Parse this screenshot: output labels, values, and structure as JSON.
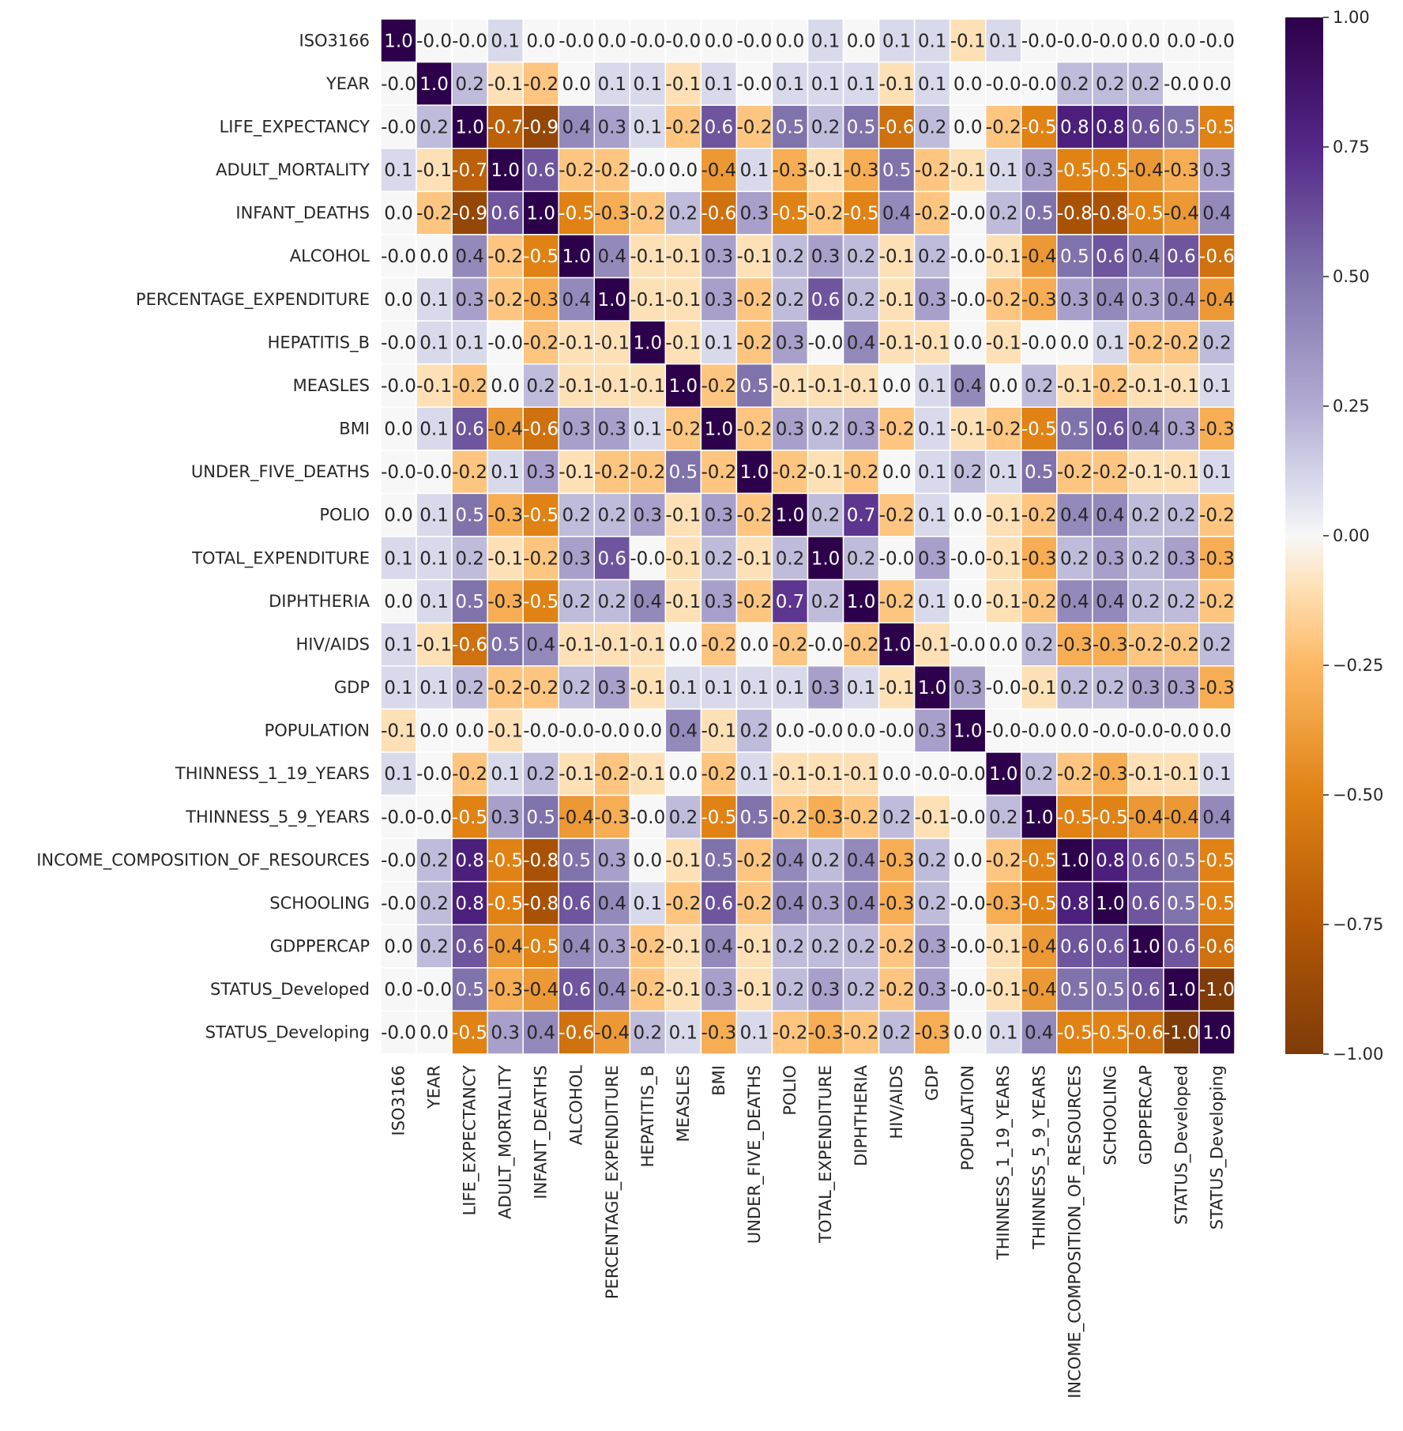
{
  "chart_data": {
    "type": "heatmap",
    "title": "",
    "xlabel": "",
    "ylabel": "",
    "grid": false,
    "legend": "colorbar-right",
    "labels": [
      "ISO3166",
      "YEAR",
      "LIFE_EXPECTANCY",
      "ADULT_MORTALITY",
      "INFANT_DEATHS",
      "ALCOHOL",
      "PERCENTAGE_EXPENDITURE",
      "HEPATITIS_B",
      "MEASLES",
      "BMI",
      "UNDER_FIVE_DEATHS",
      "POLIO",
      "TOTAL_EXPENDITURE",
      "DIPHTHERIA",
      "HIV/AIDS",
      "GDP",
      "POPULATION",
      "THINNESS_1_19_YEARS",
      "THINNESS_5_9_YEARS",
      "INCOME_COMPOSITION_OF_RESOURCES",
      "SCHOOLING",
      "GDPPERCAP",
      "STATUS_Developed",
      "STATUS_Developing"
    ],
    "cell_labels": [
      [
        "1.0",
        "-0.0",
        "-0.0",
        "0.1",
        "0.0",
        "-0.0",
        "0.0",
        "-0.0",
        "-0.0",
        "0.0",
        "-0.0",
        "0.0",
        "0.1",
        "0.0",
        "0.1",
        "0.1",
        "-0.1",
        "0.1",
        "-0.0",
        "-0.0",
        "-0.0",
        "0.0",
        "0.0",
        "-0.0"
      ],
      [
        "-0.0",
        "1.0",
        "0.2",
        "-0.1",
        "-0.2",
        "0.0",
        "0.1",
        "0.1",
        "-0.1",
        "0.1",
        "-0.0",
        "0.1",
        "0.1",
        "0.1",
        "-0.1",
        "0.1",
        "0.0",
        "-0.0",
        "-0.0",
        "0.2",
        "0.2",
        "0.2",
        "-0.0",
        "0.0"
      ],
      [
        "-0.0",
        "0.2",
        "1.0",
        "-0.7",
        "-0.9",
        "0.4",
        "0.3",
        "0.1",
        "-0.2",
        "0.6",
        "-0.2",
        "0.5",
        "0.2",
        "0.5",
        "-0.6",
        "0.2",
        "0.0",
        "-0.2",
        "-0.5",
        "0.8",
        "0.8",
        "0.6",
        "0.5",
        "-0.5"
      ],
      [
        "0.1",
        "-0.1",
        "-0.7",
        "1.0",
        "0.6",
        "-0.2",
        "-0.2",
        "-0.0",
        "0.0",
        "-0.4",
        "0.1",
        "-0.3",
        "-0.1",
        "-0.3",
        "0.5",
        "-0.2",
        "-0.1",
        "0.1",
        "0.3",
        "-0.5",
        "-0.5",
        "-0.4",
        "-0.3",
        "0.3"
      ],
      [
        "0.0",
        "-0.2",
        "-0.9",
        "0.6",
        "1.0",
        "-0.5",
        "-0.3",
        "-0.2",
        "0.2",
        "-0.6",
        "0.3",
        "-0.5",
        "-0.2",
        "-0.5",
        "0.4",
        "-0.2",
        "-0.0",
        "0.2",
        "0.5",
        "-0.8",
        "-0.8",
        "-0.5",
        "-0.4",
        "0.4"
      ],
      [
        "-0.0",
        "0.0",
        "0.4",
        "-0.2",
        "-0.5",
        "1.0",
        "0.4",
        "-0.1",
        "-0.1",
        "0.3",
        "-0.1",
        "0.2",
        "0.3",
        "0.2",
        "-0.1",
        "0.2",
        "-0.0",
        "-0.1",
        "-0.4",
        "0.5",
        "0.6",
        "0.4",
        "0.6",
        "-0.6"
      ],
      [
        "0.0",
        "0.1",
        "0.3",
        "-0.2",
        "-0.3",
        "0.4",
        "1.0",
        "-0.1",
        "-0.1",
        "0.3",
        "-0.2",
        "0.2",
        "0.6",
        "0.2",
        "-0.1",
        "0.3",
        "-0.0",
        "-0.2",
        "-0.3",
        "0.3",
        "0.4",
        "0.3",
        "0.4",
        "-0.4"
      ],
      [
        "-0.0",
        "0.1",
        "0.1",
        "-0.0",
        "-0.2",
        "-0.1",
        "-0.1",
        "1.0",
        "-0.1",
        "0.1",
        "-0.2",
        "0.3",
        "-0.0",
        "0.4",
        "-0.1",
        "-0.1",
        "0.0",
        "-0.1",
        "-0.0",
        "0.0",
        "0.1",
        "-0.2",
        "-0.2",
        "0.2"
      ],
      [
        "-0.0",
        "-0.1",
        "-0.2",
        "0.0",
        "0.2",
        "-0.1",
        "-0.1",
        "-0.1",
        "1.0",
        "-0.2",
        "0.5",
        "-0.1",
        "-0.1",
        "-0.1",
        "0.0",
        "0.1",
        "0.4",
        "0.0",
        "0.2",
        "-0.1",
        "-0.2",
        "-0.1",
        "-0.1",
        "0.1"
      ],
      [
        "0.0",
        "0.1",
        "0.6",
        "-0.4",
        "-0.6",
        "0.3",
        "0.3",
        "0.1",
        "-0.2",
        "1.0",
        "-0.2",
        "0.3",
        "0.2",
        "0.3",
        "-0.2",
        "0.1",
        "-0.1",
        "-0.2",
        "-0.5",
        "0.5",
        "0.6",
        "0.4",
        "0.3",
        "-0.3"
      ],
      [
        "-0.0",
        "-0.0",
        "-0.2",
        "0.1",
        "0.3",
        "-0.1",
        "-0.2",
        "-0.2",
        "0.5",
        "-0.2",
        "1.0",
        "-0.2",
        "-0.1",
        "-0.2",
        "0.0",
        "0.1",
        "0.2",
        "0.1",
        "0.5",
        "-0.2",
        "-0.2",
        "-0.1",
        "-0.1",
        "0.1"
      ],
      [
        "0.0",
        "0.1",
        "0.5",
        "-0.3",
        "-0.5",
        "0.2",
        "0.2",
        "0.3",
        "-0.1",
        "0.3",
        "-0.2",
        "1.0",
        "0.2",
        "0.7",
        "-0.2",
        "0.1",
        "0.0",
        "-0.1",
        "-0.2",
        "0.4",
        "0.4",
        "0.2",
        "0.2",
        "-0.2"
      ],
      [
        "0.1",
        "0.1",
        "0.2",
        "-0.1",
        "-0.2",
        "0.3",
        "0.6",
        "-0.0",
        "-0.1",
        "0.2",
        "-0.1",
        "0.2",
        "1.0",
        "0.2",
        "-0.0",
        "0.3",
        "-0.0",
        "-0.1",
        "-0.3",
        "0.2",
        "0.3",
        "0.2",
        "0.3",
        "-0.3"
      ],
      [
        "0.0",
        "0.1",
        "0.5",
        "-0.3",
        "-0.5",
        "0.2",
        "0.2",
        "0.4",
        "-0.1",
        "0.3",
        "-0.2",
        "0.7",
        "0.2",
        "1.0",
        "-0.2",
        "0.1",
        "0.0",
        "-0.1",
        "-0.2",
        "0.4",
        "0.4",
        "0.2",
        "0.2",
        "-0.2"
      ],
      [
        "0.1",
        "-0.1",
        "-0.6",
        "0.5",
        "0.4",
        "-0.1",
        "-0.1",
        "-0.1",
        "0.0",
        "-0.2",
        "0.0",
        "-0.2",
        "-0.0",
        "-0.2",
        "1.0",
        "-0.1",
        "-0.0",
        "0.0",
        "0.2",
        "-0.3",
        "-0.3",
        "-0.2",
        "-0.2",
        "0.2"
      ],
      [
        "0.1",
        "0.1",
        "0.2",
        "-0.2",
        "-0.2",
        "0.2",
        "0.3",
        "-0.1",
        "0.1",
        "0.1",
        "0.1",
        "0.1",
        "0.3",
        "0.1",
        "-0.1",
        "1.0",
        "0.3",
        "-0.0",
        "-0.1",
        "0.2",
        "0.2",
        "0.3",
        "0.3",
        "-0.3"
      ],
      [
        "-0.1",
        "0.0",
        "0.0",
        "-0.1",
        "-0.0",
        "-0.0",
        "-0.0",
        "0.0",
        "0.4",
        "-0.1",
        "0.2",
        "0.0",
        "-0.0",
        "0.0",
        "-0.0",
        "0.3",
        "1.0",
        "-0.0",
        "-0.0",
        "0.0",
        "-0.0",
        "-0.0",
        "-0.0",
        "0.0"
      ],
      [
        "0.1",
        "-0.0",
        "-0.2",
        "0.1",
        "0.2",
        "-0.1",
        "-0.2",
        "-0.1",
        "0.0",
        "-0.2",
        "0.1",
        "-0.1",
        "-0.1",
        "-0.1",
        "0.0",
        "-0.0",
        "-0.0",
        "1.0",
        "0.2",
        "-0.2",
        "-0.3",
        "-0.1",
        "-0.1",
        "0.1"
      ],
      [
        "-0.0",
        "-0.0",
        "-0.5",
        "0.3",
        "0.5",
        "-0.4",
        "-0.3",
        "-0.0",
        "0.2",
        "-0.5",
        "0.5",
        "-0.2",
        "-0.3",
        "-0.2",
        "0.2",
        "-0.1",
        "-0.0",
        "0.2",
        "1.0",
        "-0.5",
        "-0.5",
        "-0.4",
        "-0.4",
        "0.4"
      ],
      [
        "-0.0",
        "0.2",
        "0.8",
        "-0.5",
        "-0.8",
        "0.5",
        "0.3",
        "0.0",
        "-0.1",
        "0.5",
        "-0.2",
        "0.4",
        "0.2",
        "0.4",
        "-0.3",
        "0.2",
        "0.0",
        "-0.2",
        "-0.5",
        "1.0",
        "0.8",
        "0.6",
        "0.5",
        "-0.5"
      ],
      [
        "-0.0",
        "0.2",
        "0.8",
        "-0.5",
        "-0.8",
        "0.6",
        "0.4",
        "0.1",
        "-0.2",
        "0.6",
        "-0.2",
        "0.4",
        "0.3",
        "0.4",
        "-0.3",
        "0.2",
        "-0.0",
        "-0.3",
        "-0.5",
        "0.8",
        "1.0",
        "0.6",
        "0.5",
        "-0.5"
      ],
      [
        "0.0",
        "0.2",
        "0.6",
        "-0.4",
        "-0.5",
        "0.4",
        "0.3",
        "-0.2",
        "-0.1",
        "0.4",
        "-0.1",
        "0.2",
        "0.2",
        "0.2",
        "-0.2",
        "0.3",
        "-0.0",
        "-0.1",
        "-0.4",
        "0.6",
        "0.6",
        "1.0",
        "0.6",
        "-0.6"
      ],
      [
        "0.0",
        "-0.0",
        "0.5",
        "-0.3",
        "-0.4",
        "0.6",
        "0.4",
        "-0.2",
        "-0.1",
        "0.3",
        "-0.1",
        "0.2",
        "0.3",
        "0.2",
        "-0.2",
        "0.3",
        "-0.0",
        "-0.1",
        "-0.4",
        "0.5",
        "0.5",
        "0.6",
        "1.0",
        "-1.0"
      ],
      [
        "-0.0",
        "0.0",
        "-0.5",
        "0.3",
        "0.4",
        "-0.6",
        "-0.4",
        "0.2",
        "0.1",
        "-0.3",
        "0.1",
        "-0.2",
        "-0.3",
        "-0.2",
        "0.2",
        "-0.3",
        "0.0",
        "0.1",
        "0.4",
        "-0.5",
        "-0.5",
        "-0.6",
        "-1.0",
        "1.0"
      ]
    ],
    "vmin": -1.0,
    "vmax": 1.0,
    "colorbar_ticks": [
      "1.00",
      "0.75",
      "0.50",
      "0.25",
      "0.00",
      "−0.25",
      "−0.50",
      "−0.75",
      "−1.00"
    ],
    "colormap": "PuOr",
    "colors": {
      "negative_end": "#7f3b08",
      "positive_end": "#2d004b",
      "neutral": "#f7f7f7",
      "cell_border": "#ffffff"
    }
  }
}
